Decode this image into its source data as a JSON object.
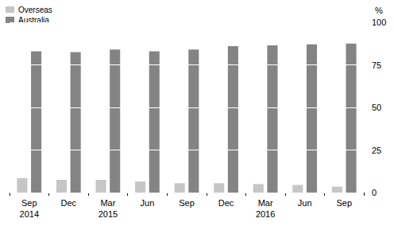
{
  "chart_data": {
    "type": "bar",
    "categories": [
      "Sep\n2014",
      "Dec",
      "Mar\n2015",
      "Jun",
      "Sep",
      "Dec",
      "Mar\n2016",
      "Jun",
      "Sep"
    ],
    "series": [
      {
        "name": "Overseas",
        "color": "#c6c6c6",
        "values": [
          8.5,
          7.5,
          7.5,
          6.5,
          5.5,
          5.5,
          5,
          4.5,
          3.5
        ]
      },
      {
        "name": "Australia",
        "color": "#848484",
        "values": [
          83,
          82.5,
          84,
          83,
          84,
          86,
          86.5,
          87,
          87.5
        ]
      }
    ],
    "ylabel": "%",
    "ylim": [
      0,
      100
    ],
    "yticks": [
      0,
      25,
      50,
      75,
      100
    ],
    "grid": true,
    "legend": "upper left"
  }
}
